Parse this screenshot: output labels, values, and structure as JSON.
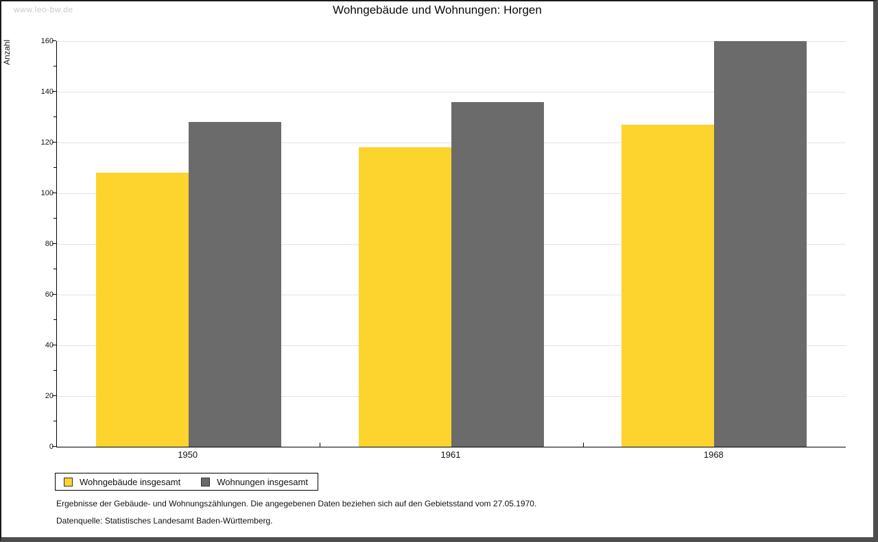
{
  "page": {
    "watermark": "www.leo-bw.de"
  },
  "chart_data": {
    "type": "bar",
    "title": "Wohngebäude und Wohnungen: Horgen",
    "ylabel": "Anzahl",
    "xlabel": "",
    "categories": [
      "1950",
      "1961",
      "1968"
    ],
    "series": [
      {
        "name": "Wohngebäude insgesamt",
        "color": "#fdd32e",
        "values": [
          108,
          118,
          127
        ]
      },
      {
        "name": "Wohnungen insgesamt",
        "color": "#6b6b6b",
        "values": [
          128,
          136,
          160
        ]
      }
    ],
    "ylim": [
      0,
      160
    ],
    "y_major_step": 20,
    "y_minor_step": 10,
    "grid": true,
    "grid_color": "#e2e2e2",
    "axis_color": "#000000",
    "legend_position": "bottom-left"
  },
  "footer": {
    "line1": "Ergebnisse der Gebäude- und Wohnungszählungen. Die angegebenen Daten beziehen sich auf den Gebietsstand vom 27.05.1970.",
    "line2": "Datenquelle: Statistisches Landesamt Baden-Württemberg."
  }
}
